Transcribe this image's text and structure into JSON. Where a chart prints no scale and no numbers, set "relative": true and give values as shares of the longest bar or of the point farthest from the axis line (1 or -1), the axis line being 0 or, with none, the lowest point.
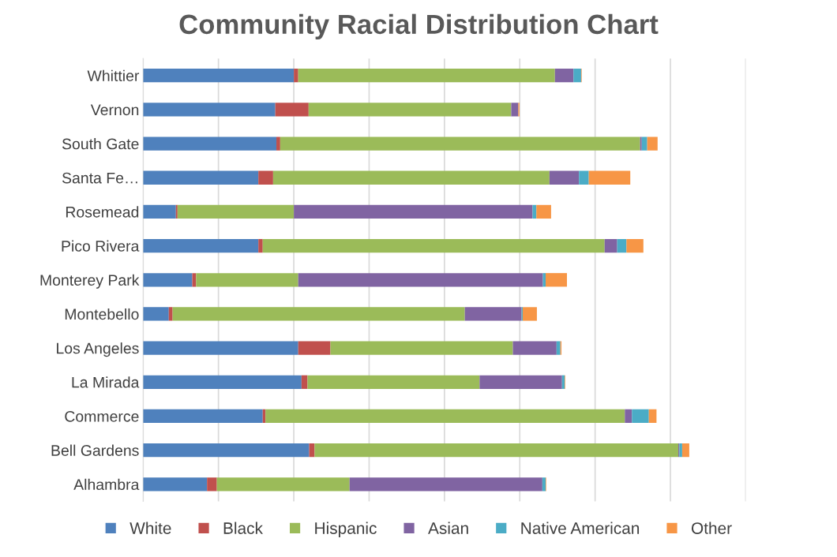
{
  "chart_data": {
    "type": "bar",
    "title": "Community Racial Distribution Chart",
    "orientation": "horizontal",
    "stacked": true,
    "relative": true,
    "grid": "x",
    "legend": "bottom",
    "categories": [
      "Whittier",
      "Vernon",
      "South Gate",
      "Santa Fe…",
      "Rosemead",
      "Pico Rivera",
      "Monterey Park",
      "Montebello",
      "Los Angeles",
      "La Mirada",
      "Commerce",
      "Bell Gardens",
      "Alhambra"
    ],
    "series": [
      {
        "name": "White",
        "color": "#4f81bd",
        "values": [
          0.276,
          0.242,
          0.244,
          0.211,
          0.06,
          0.211,
          0.09,
          0.047,
          0.284,
          0.29,
          0.219,
          0.304,
          0.117
        ]
      },
      {
        "name": "Black",
        "color": "#c0504d",
        "values": [
          0.008,
          0.061,
          0.007,
          0.027,
          0.003,
          0.008,
          0.007,
          0.007,
          0.059,
          0.011,
          0.005,
          0.01,
          0.018
        ]
      },
      {
        "name": "Hispanic",
        "color": "#9bbb59",
        "values": [
          0.47,
          0.371,
          0.659,
          0.506,
          0.213,
          0.626,
          0.187,
          0.535,
          0.334,
          0.315,
          0.658,
          0.666,
          0.243
        ]
      },
      {
        "name": "Asian",
        "color": "#8064a2",
        "values": [
          0.034,
          0.013,
          0.003,
          0.054,
          0.437,
          0.023,
          0.448,
          0.104,
          0.08,
          0.151,
          0.013,
          0.002,
          0.353
        ]
      },
      {
        "name": "Native American",
        "color": "#4bacc6",
        "values": [
          0.014,
          0.0,
          0.01,
          0.018,
          0.007,
          0.017,
          0.005,
          0.002,
          0.007,
          0.005,
          0.031,
          0.005,
          0.006
        ]
      },
      {
        "name": "Other",
        "color": "#f79646",
        "values": [
          0.001,
          0.002,
          0.019,
          0.076,
          0.027,
          0.031,
          0.039,
          0.026,
          0.002,
          0.001,
          0.014,
          0.013,
          0.001
        ]
      }
    ]
  }
}
